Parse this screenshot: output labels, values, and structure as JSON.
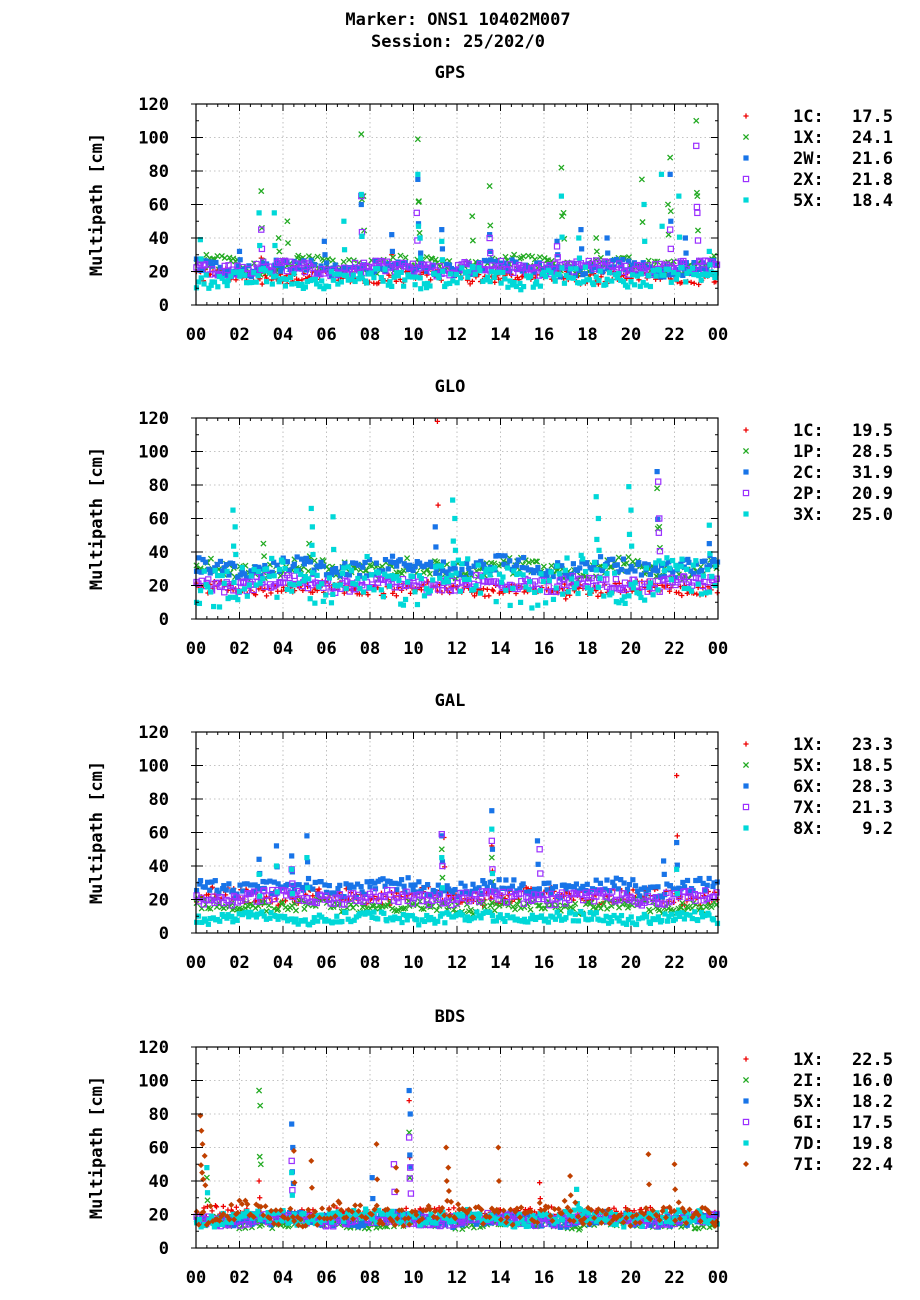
{
  "header": {
    "marker": "Marker: ONS1 10402M007",
    "session": "Session: 25/202/0"
  },
  "chart_data": [
    {
      "type": "scatter",
      "title": "GPS",
      "ylabel": "Multipath [cm]",
      "xlabel": "",
      "xlim": [
        0,
        24
      ],
      "ylim": [
        0,
        120
      ],
      "xticks": [
        "00",
        "02",
        "04",
        "06",
        "08",
        "10",
        "12",
        "14",
        "16",
        "18",
        "20",
        "22",
        "00"
      ],
      "yticks": [
        "0",
        "20",
        "40",
        "60",
        "80",
        "100",
        "120"
      ],
      "grid": true,
      "legend_position": "right",
      "series": [
        {
          "name": "1C:",
          "value": "17.5",
          "marker": "plus",
          "color": "#ee0000",
          "base": 17,
          "spread": 3.5,
          "spikes": [
            [
              3.0,
              28
            ],
            [
              9.0,
              30
            ],
            [
              21.8,
              18
            ]
          ]
        },
        {
          "name": "1X:",
          "value": "24.1",
          "marker": "cross",
          "color": "#22aa22",
          "base": 24,
          "spread": 4.5,
          "spikes": [
            [
              3.0,
              68
            ],
            [
              3.8,
              40
            ],
            [
              4.2,
              50
            ],
            [
              7.6,
              102
            ],
            [
              7.7,
              65
            ],
            [
              10.2,
              99
            ],
            [
              10.25,
              62
            ],
            [
              12.7,
              53
            ],
            [
              13.5,
              71
            ],
            [
              16.8,
              82
            ],
            [
              16.9,
              55
            ],
            [
              18.4,
              40
            ],
            [
              20.5,
              75
            ],
            [
              21.8,
              88
            ],
            [
              21.7,
              60
            ],
            [
              23.0,
              110
            ],
            [
              23.05,
              65
            ]
          ]
        },
        {
          "name": "2W:",
          "value": "21.6",
          "marker": "square",
          "color": "#1874e8",
          "base": 22,
          "spread": 4,
          "spikes": [
            [
              2.0,
              32
            ],
            [
              5.9,
              38
            ],
            [
              7.6,
              60
            ],
            [
              9.0,
              42
            ],
            [
              10.2,
              75
            ],
            [
              10.3,
              40
            ],
            [
              11.3,
              45
            ],
            [
              13.5,
              42
            ],
            [
              16.6,
              38
            ],
            [
              17.7,
              45
            ],
            [
              18.9,
              40
            ],
            [
              21.8,
              78
            ],
            [
              22.5,
              40
            ]
          ]
        },
        {
          "name": "2X:",
          "value": "21.8",
          "marker": "opensquare",
          "color": "#9b30ff",
          "base": 22,
          "spread": 3.5,
          "spikes": [
            [
              3.0,
              45
            ],
            [
              7.6,
              65
            ],
            [
              10.15,
              55
            ],
            [
              13.5,
              40
            ],
            [
              16.6,
              35
            ],
            [
              21.8,
              45
            ],
            [
              23.0,
              95
            ],
            [
              23.05,
              55
            ]
          ]
        },
        {
          "name": "5X:",
          "value": "18.4",
          "marker": "square",
          "color": "#00d8d8",
          "base": 16,
          "spread": 5,
          "spikes": [
            [
              0.2,
              39
            ],
            [
              2.9,
              55
            ],
            [
              3.6,
              55
            ],
            [
              6.8,
              50
            ],
            [
              7.6,
              66
            ],
            [
              10.2,
              78
            ],
            [
              10.3,
              40
            ],
            [
              11.3,
              38
            ],
            [
              16.8,
              65
            ],
            [
              17.6,
              40
            ],
            [
              20.6,
              60
            ],
            [
              21.4,
              78
            ],
            [
              22.2,
              65
            ],
            [
              23.6,
              32
            ]
          ]
        }
      ]
    },
    {
      "type": "scatter",
      "title": "GLO",
      "ylabel": "Multipath [cm]",
      "xlabel": "",
      "xlim": [
        0,
        24
      ],
      "ylim": [
        0,
        120
      ],
      "xticks": [
        "00",
        "02",
        "04",
        "06",
        "08",
        "10",
        "12",
        "14",
        "16",
        "18",
        "20",
        "22",
        "00"
      ],
      "yticks": [
        "0",
        "20",
        "40",
        "60",
        "80",
        "100",
        "120"
      ],
      "grid": true,
      "legend_position": "right",
      "series": [
        {
          "name": "1C:",
          "value": "19.5",
          "marker": "plus",
          "color": "#ee0000",
          "base": 18,
          "spread": 3.5,
          "spikes": [
            [
              11.1,
              118
            ],
            [
              17.0,
              12
            ]
          ]
        },
        {
          "name": "1P:",
          "value": "28.5",
          "marker": "cross",
          "color": "#22aa22",
          "base": 30,
          "spread": 5,
          "spikes": [
            [
              3.1,
              45
            ],
            [
              5.2,
              45
            ],
            [
              21.2,
              78
            ],
            [
              21.3,
              55
            ]
          ]
        },
        {
          "name": "2C:",
          "value": "31.9",
          "marker": "square",
          "color": "#1874e8",
          "base": 31,
          "spread": 5,
          "spikes": [
            [
              11.0,
              55
            ],
            [
              21.2,
              88
            ],
            [
              23.6,
              45
            ]
          ]
        },
        {
          "name": "2P:",
          "value": "20.9",
          "marker": "opensquare",
          "color": "#9b30ff",
          "base": 21,
          "spread": 4,
          "spikes": [
            [
              21.25,
              82
            ],
            [
              21.3,
              60
            ]
          ]
        },
        {
          "name": "3X:",
          "value": "25.0",
          "marker": "square",
          "color": "#00d8d8",
          "base": 22,
          "spread": 12,
          "spikes": [
            [
              1.7,
              65
            ],
            [
              1.8,
              55
            ],
            [
              5.3,
              66
            ],
            [
              5.35,
              55
            ],
            [
              6.3,
              61
            ],
            [
              11.8,
              71
            ],
            [
              11.9,
              60
            ],
            [
              18.4,
              73
            ],
            [
              18.5,
              60
            ],
            [
              19.9,
              79
            ],
            [
              20.0,
              65
            ],
            [
              23.6,
              56
            ]
          ]
        }
      ]
    },
    {
      "type": "scatter",
      "title": "GAL",
      "ylabel": "Multipath [cm]",
      "xlabel": "",
      "xlim": [
        0,
        24
      ],
      "ylim": [
        0,
        120
      ],
      "xticks": [
        "00",
        "02",
        "04",
        "06",
        "08",
        "10",
        "12",
        "14",
        "16",
        "18",
        "20",
        "22",
        "00"
      ],
      "yticks": [
        "0",
        "20",
        "40",
        "60",
        "80",
        "100",
        "120"
      ],
      "grid": true,
      "legend_position": "right",
      "series": [
        {
          "name": "1X:",
          "value": "23.3",
          "marker": "plus",
          "color": "#ee0000",
          "base": 22,
          "spread": 4,
          "spikes": [
            [
              11.4,
              57
            ],
            [
              13.6,
              52
            ],
            [
              22.1,
              94
            ]
          ]
        },
        {
          "name": "5X:",
          "value": "18.5",
          "marker": "cross",
          "color": "#22aa22",
          "base": 16,
          "spread": 3.5,
          "spikes": [
            [
              11.3,
              50
            ],
            [
              13.6,
              45
            ]
          ]
        },
        {
          "name": "6X:",
          "value": "28.3",
          "marker": "square",
          "color": "#1874e8",
          "base": 27,
          "spread": 4.5,
          "spikes": [
            [
              2.9,
              44
            ],
            [
              3.7,
              52
            ],
            [
              4.4,
              46
            ],
            [
              5.1,
              58
            ],
            [
              11.3,
              58
            ],
            [
              13.6,
              73
            ],
            [
              15.7,
              55
            ],
            [
              21.5,
              43
            ],
            [
              22.1,
              54
            ]
          ]
        },
        {
          "name": "7X:",
          "value": "21.3",
          "marker": "opensquare",
          "color": "#9b30ff",
          "base": 21,
          "spread": 3.5,
          "spikes": [
            [
              11.3,
              59
            ],
            [
              13.6,
              55
            ],
            [
              15.8,
              50
            ],
            [
              4.4,
              38
            ]
          ]
        },
        {
          "name": "8X:",
          "value": "9.2",
          "marker": "square",
          "color": "#00d8d8",
          "base": 9,
          "spread": 3,
          "spikes": [
            [
              2.9,
              35
            ],
            [
              3.7,
              40
            ],
            [
              4.4,
              38
            ],
            [
              5.1,
              45
            ],
            [
              11.3,
              45
            ],
            [
              13.6,
              62
            ],
            [
              22.1,
              38
            ]
          ]
        }
      ]
    },
    {
      "type": "scatter",
      "title": "BDS",
      "ylabel": "Multipath [cm]",
      "xlabel": "",
      "xlim": [
        0,
        24
      ],
      "ylim": [
        0,
        120
      ],
      "xticks": [
        "00",
        "02",
        "04",
        "06",
        "08",
        "10",
        "12",
        "14",
        "16",
        "18",
        "20",
        "22",
        "00"
      ],
      "yticks": [
        "0",
        "20",
        "40",
        "60",
        "80",
        "100",
        "120"
      ],
      "grid": true,
      "legend_position": "right",
      "series": [
        {
          "name": "1X:",
          "value": "22.5",
          "marker": "plus",
          "color": "#ee0000",
          "base": 20,
          "spread": 4,
          "spikes": [
            [
              2.9,
              40
            ],
            [
              9.8,
              88
            ],
            [
              15.8,
              39
            ]
          ]
        },
        {
          "name": "2I:",
          "value": "16.0",
          "marker": "cross",
          "color": "#22aa22",
          "base": 15,
          "spread": 3,
          "spikes": [
            [
              2.9,
              94
            ],
            [
              2.95,
              85
            ],
            [
              9.8,
              69
            ],
            [
              0.5,
              42
            ]
          ]
        },
        {
          "name": "5X:",
          "value": "18.2",
          "marker": "square",
          "color": "#1874e8",
          "base": 17,
          "spread": 3.5,
          "spikes": [
            [
              4.4,
              74
            ],
            [
              4.45,
              60
            ],
            [
              9.8,
              94
            ],
            [
              9.85,
              80
            ],
            [
              8.1,
              42
            ]
          ]
        },
        {
          "name": "6I:",
          "value": "17.5",
          "marker": "opensquare",
          "color": "#9b30ff",
          "base": 17,
          "spread": 3,
          "spikes": [
            [
              4.4,
              52
            ],
            [
              9.8,
              66
            ],
            [
              9.85,
              48
            ],
            [
              9.1,
              50
            ]
          ]
        },
        {
          "name": "7D:",
          "value": "19.8",
          "marker": "square",
          "color": "#00d8d8",
          "base": 18,
          "spread": 4,
          "spikes": [
            [
              0.5,
              48
            ],
            [
              4.4,
              45
            ],
            [
              17.5,
              35
            ]
          ]
        },
        {
          "name": "7I:",
          "value": "22.4",
          "marker": "diamond",
          "color": "#c04000",
          "base": 20,
          "spread": 6,
          "spikes": [
            [
              0.2,
              79
            ],
            [
              0.25,
              70
            ],
            [
              0.3,
              62
            ],
            [
              0.4,
              55
            ],
            [
              4.5,
              58
            ],
            [
              5.3,
              52
            ],
            [
              8.3,
              62
            ],
            [
              9.2,
              48
            ],
            [
              11.5,
              60
            ],
            [
              11.6,
              48
            ],
            [
              13.9,
              60
            ],
            [
              17.2,
              43
            ],
            [
              20.8,
              56
            ],
            [
              22.0,
              50
            ]
          ]
        }
      ]
    }
  ]
}
